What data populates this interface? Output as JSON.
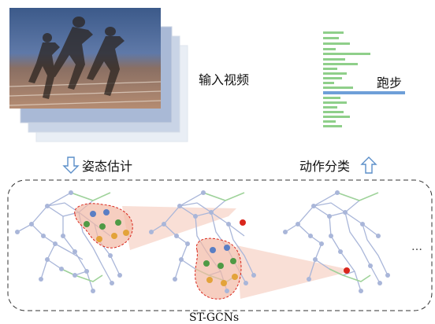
{
  "labels": {
    "input_video": "输入视频",
    "pose_estimation": "姿态估计",
    "action_classification": "动作分类",
    "predicted_class": "跑步",
    "model_name": "ST-GCNs",
    "ellipsis": "…"
  },
  "colors": {
    "bar_green": "#8fcf8a",
    "bar_blue": "#6e9fd8",
    "arrow_blue": "#5b8fc9",
    "skeleton_blue": "#a9b6d9",
    "skeleton_green": "#9fd39a",
    "node_blue": "#5a7ec4",
    "node_green": "#4f9a45",
    "node_orange": "#e3a33a",
    "node_red": "#d9261c",
    "highlight_fill": "#f2b9a5",
    "dashed_border": "#333333"
  },
  "icons": [
    "down-arrow-icon",
    "up-arrow-icon"
  ]
}
